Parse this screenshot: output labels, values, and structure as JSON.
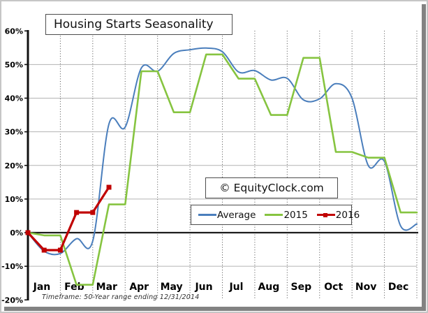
{
  "watermark": {
    "text": "© EquityClock.com"
  },
  "footnote": "Timeframe: 50-Year range ending 12/31/2014",
  "legend": {
    "items": [
      {
        "label": "Average"
      },
      {
        "label": "2015"
      },
      {
        "label": "2016"
      }
    ]
  },
  "chart_data": {
    "type": "line",
    "title": "Housing Starts Seasonality",
    "categories": [
      "Jan",
      "Feb",
      "Mar",
      "Apr",
      "May",
      "Jun",
      "Jul",
      "Aug",
      "Sep",
      "Oct",
      "Nov",
      "Dec"
    ],
    "points_per_month": 2,
    "ylim": [
      -20,
      60
    ],
    "y_format": "percent",
    "y_ticks": [
      {
        "label": "60%",
        "value": 60
      },
      {
        "label": "50%",
        "value": 50
      },
      {
        "label": "40%",
        "value": 40
      },
      {
        "label": "30%",
        "value": 30
      },
      {
        "label": "20%",
        "value": 20
      },
      {
        "label": "10%",
        "value": 10
      },
      {
        "label": "0%",
        "value": 0
      },
      {
        "label": "-10%",
        "value": -10
      },
      {
        "label": "-20%",
        "value": -20
      }
    ],
    "grid": {
      "horizontal": [
        50,
        40,
        30,
        20,
        10,
        -10
      ],
      "vertical": "month-boundaries",
      "vertical_style": "dotted"
    },
    "legend_position": "inside-middle-right",
    "series": [
      {
        "name": "Average",
        "color": "#4a7ebc",
        "style": "smooth",
        "marker": "none",
        "values": [
          0,
          -5.5,
          -6.2,
          -1.8,
          -2.5,
          32.3,
          31.4,
          49,
          48,
          53.3,
          54.4,
          54.9,
          53.8,
          47.8,
          48.2,
          45.4,
          45.9,
          39.5,
          39.8,
          44.3,
          40,
          20,
          21.2,
          2,
          2.6
        ]
      },
      {
        "name": "2015",
        "color": "#86c440",
        "style": "linear",
        "marker": "none",
        "values": [
          0,
          -0.8,
          -0.8,
          -15.5,
          -15.5,
          8.4,
          8.4,
          48,
          48,
          35.8,
          35.8,
          53,
          53,
          45.8,
          45.8,
          35,
          35,
          52,
          52,
          24,
          24,
          22.3,
          22.3,
          6,
          6
        ]
      },
      {
        "name": "2016",
        "color": "#c00000",
        "style": "linear",
        "marker": "square",
        "values": [
          0,
          -5.2,
          -5.2,
          6,
          6,
          13.5
        ]
      }
    ]
  }
}
